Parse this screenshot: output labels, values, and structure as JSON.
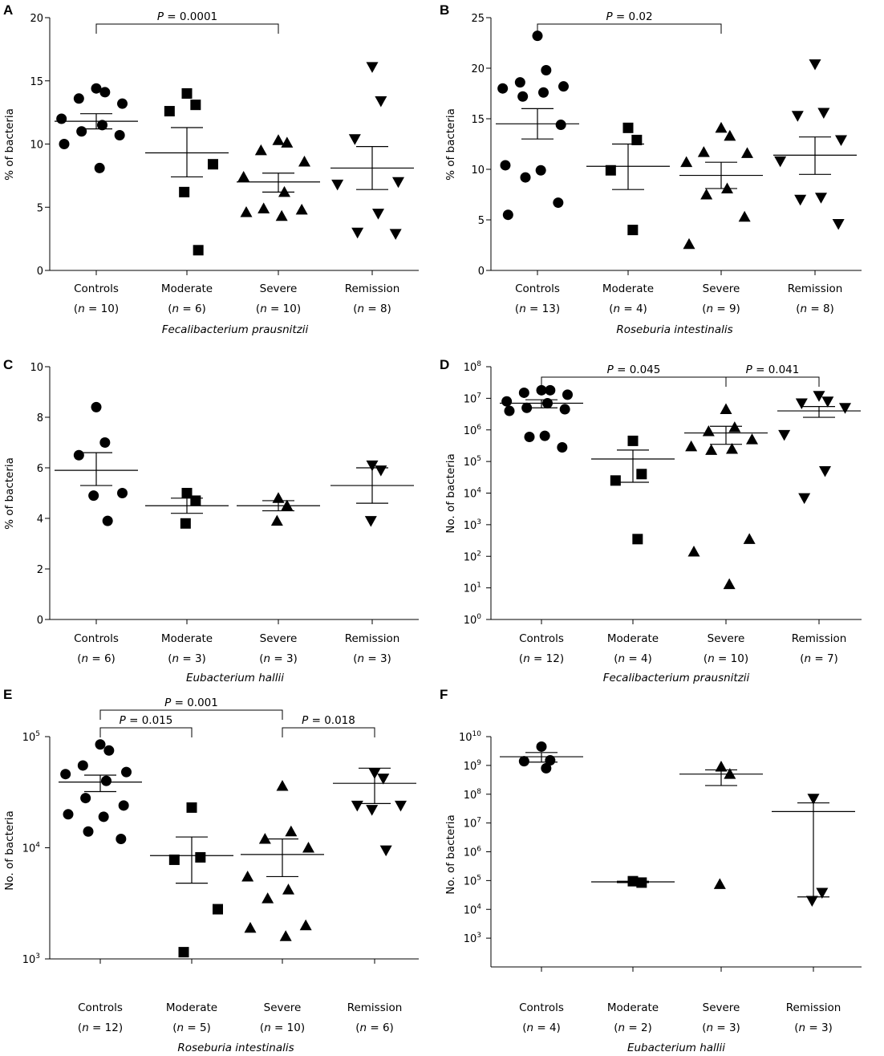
{
  "chart_data": [
    {
      "panel": "A",
      "type": "scatter",
      "ylabel": "% of bacteria",
      "yscale": "linear",
      "ylim": [
        0,
        20
      ],
      "yticks": [
        0,
        5,
        10,
        15,
        20
      ],
      "ytick_labels": [
        "0",
        "5",
        "10",
        "15",
        "20"
      ],
      "species": "Fecalibacterium prausnitzii",
      "groups": [
        {
          "name": "Controls",
          "n": "(n = 10)",
          "marker": "circle",
          "values": [
            14.4,
            14.1,
            13.6,
            13.2,
            12.0,
            11.5,
            11.0,
            10.7,
            10.0,
            8.1
          ],
          "mean": 11.8,
          "sem_hi": 12.4,
          "sem_lo": 11.2
        },
        {
          "name": "Moderate",
          "n": "(n = 6)",
          "marker": "square",
          "values": [
            14.0,
            13.1,
            12.6,
            8.4,
            6.2,
            1.6
          ],
          "mean": 9.3,
          "sem_hi": 11.3,
          "sem_lo": 7.4
        },
        {
          "name": "Severe",
          "n": "(n = 10)",
          "marker": "triangle-up",
          "values": [
            10.3,
            10.1,
            9.5,
            8.6,
            7.4,
            6.2,
            4.9,
            4.8,
            4.6,
            4.3
          ],
          "mean": 7.0,
          "sem_hi": 7.7,
          "sem_lo": 6.2
        },
        {
          "name": "Remission",
          "n": "(n = 8)",
          "marker": "triangle-down",
          "values": [
            16.1,
            13.4,
            10.4,
            7.0,
            6.8,
            4.5,
            3.0,
            2.9
          ],
          "mean": 8.1,
          "sem_hi": 9.8,
          "sem_lo": 6.4
        }
      ],
      "comparisons": [
        {
          "from": 0,
          "to": 2,
          "label": "P = 0.0001"
        }
      ]
    },
    {
      "panel": "B",
      "type": "scatter",
      "ylabel": "% of bacteria",
      "yscale": "linear",
      "ylim": [
        0,
        25
      ],
      "yticks": [
        0,
        5,
        10,
        15,
        20,
        25
      ],
      "ytick_labels": [
        "0",
        "5",
        "10",
        "15",
        "20",
        "25"
      ],
      "species": "Roseburia intestinalis",
      "groups": [
        {
          "name": "Controls",
          "n": "(n = 13)",
          "marker": "circle",
          "values": [
            23.2,
            19.8,
            18.6,
            18.2,
            18.0,
            17.6,
            17.2,
            14.4,
            10.4,
            9.9,
            9.2,
            6.7,
            5.5
          ],
          "mean": 14.5,
          "sem_hi": 16.0,
          "sem_lo": 13.0
        },
        {
          "name": "Moderate",
          "n": "(n = 4)",
          "marker": "square",
          "values": [
            14.1,
            12.9,
            9.9,
            4.0
          ],
          "mean": 10.3,
          "sem_hi": 12.5,
          "sem_lo": 8.0
        },
        {
          "name": "Severe",
          "n": "(n = 9)",
          "marker": "triangle-up",
          "values": [
            14.1,
            13.3,
            11.7,
            11.6,
            10.7,
            8.1,
            7.5,
            5.3,
            2.6
          ],
          "mean": 9.4,
          "sem_hi": 10.7,
          "sem_lo": 8.1
        },
        {
          "name": "Remission",
          "n": "(n = 8)",
          "marker": "triangle-down",
          "values": [
            20.4,
            15.6,
            15.3,
            12.9,
            10.8,
            7.2,
            7.0,
            4.6
          ],
          "mean": 11.4,
          "sem_hi": 13.2,
          "sem_lo": 9.5
        }
      ],
      "comparisons": [
        {
          "from": 0,
          "to": 2,
          "label": "P = 0.02"
        }
      ]
    },
    {
      "panel": "C",
      "type": "scatter",
      "ylabel": "% of bacteria",
      "yscale": "linear",
      "ylim": [
        0,
        10
      ],
      "yticks": [
        0,
        2,
        4,
        6,
        8,
        10
      ],
      "ytick_labels": [
        "0",
        "2",
        "4",
        "6",
        "8",
        "10"
      ],
      "species": "Eubacterium hallii",
      "groups": [
        {
          "name": "Controls",
          "n": "(n = 6)",
          "marker": "circle",
          "values": [
            8.4,
            7.0,
            6.5,
            5.0,
            4.9,
            3.9
          ],
          "mean": 5.9,
          "sem_hi": 6.6,
          "sem_lo": 5.3
        },
        {
          "name": "Moderate",
          "n": "(n = 3)",
          "marker": "square",
          "values": [
            5.0,
            4.7,
            3.8
          ],
          "mean": 4.5,
          "sem_hi": 4.8,
          "sem_lo": 4.2
        },
        {
          "name": "Severe",
          "n": "(n = 3)",
          "marker": "triangle-up",
          "values": [
            4.8,
            4.5,
            3.9
          ],
          "mean": 4.5,
          "sem_hi": 4.7,
          "sem_lo": 4.3
        },
        {
          "name": "Remission",
          "n": "(n = 3)",
          "marker": "triangle-down",
          "values": [
            6.1,
            5.9,
            3.9
          ],
          "mean": 5.3,
          "sem_hi": 6.0,
          "sem_lo": 4.6
        }
      ],
      "comparisons": []
    },
    {
      "panel": "D",
      "type": "scatter",
      "ylabel": "No. of bacteria",
      "yscale": "log",
      "ylim": [
        1,
        100000000
      ],
      "yticks": [
        1,
        10,
        100,
        1000,
        10000,
        100000,
        1000000,
        10000000,
        100000000
      ],
      "ytick_labels": [
        [
          "10",
          "0"
        ],
        [
          "10",
          "1"
        ],
        [
          "10",
          "2"
        ],
        [
          "10",
          "3"
        ],
        [
          "10",
          "4"
        ],
        [
          "10",
          "5"
        ],
        [
          "10",
          "6"
        ],
        [
          "10",
          "7"
        ],
        [
          "10",
          "8"
        ]
      ],
      "species": "Fecalibacterium prausnitzii",
      "groups": [
        {
          "name": "Controls",
          "n": "(n = 12)",
          "marker": "circle",
          "values": [
            18000000,
            18000000,
            15000000,
            13000000,
            8000000,
            7000000,
            5000000,
            4500000,
            4000000,
            650000,
            600000,
            280000
          ],
          "mean": 7000000,
          "sem_hi": 9000000,
          "sem_lo": 5000000
        },
        {
          "name": "Moderate",
          "n": "(n = 4)",
          "marker": "square",
          "values": [
            450000,
            40000,
            25000,
            350
          ],
          "mean": 120000,
          "sem_hi": 230000,
          "sem_lo": 22000
        },
        {
          "name": "Severe",
          "n": "(n = 10)",
          "marker": "triangle-up",
          "values": [
            4500000,
            1200000,
            900000,
            500000,
            300000,
            250000,
            230000,
            350,
            140,
            13
          ],
          "mean": 800000,
          "sem_hi": 1300000,
          "sem_lo": 350000
        },
        {
          "name": "Remission",
          "n": "(n = 7)",
          "marker": "triangle-down",
          "values": [
            12000000,
            8000000,
            7000000,
            5000000,
            700000,
            50000,
            7000
          ],
          "mean": 4000000,
          "sem_hi": 5500000,
          "sem_lo": 2500000
        }
      ],
      "comparisons": [
        {
          "from": 0,
          "to": 2,
          "label": "P = 0.045"
        },
        {
          "from": 2,
          "to": 3,
          "label": "P = 0.041"
        }
      ]
    },
    {
      "panel": "E",
      "type": "scatter",
      "ylabel": "No. of bacteria",
      "yscale": "log",
      "ylim": [
        1000,
        100000
      ],
      "yticks": [
        1000,
        10000,
        100000
      ],
      "ytick_labels": [
        [
          "10",
          "3"
        ],
        [
          "10",
          "4"
        ],
        [
          "10",
          "5"
        ]
      ],
      "species": "Roseburia intestinalis",
      "groups": [
        {
          "name": "Controls",
          "n": "(n = 12)",
          "marker": "circle",
          "values": [
            85000,
            75000,
            55000,
            48000,
            46000,
            40000,
            28000,
            24000,
            20000,
            19000,
            14000,
            12000
          ],
          "mean": 39000,
          "sem_hi": 45000,
          "sem_lo": 32000
        },
        {
          "name": "Moderate",
          "n": "(n = 5)",
          "marker": "square",
          "values": [
            23000,
            8200,
            7800,
            2800,
            1150
          ],
          "mean": 8500,
          "sem_hi": 12500,
          "sem_lo": 4800
        },
        {
          "name": "Severe",
          "n": "(n = 10)",
          "marker": "triangle-up",
          "values": [
            36000,
            14000,
            12000,
            10000,
            5500,
            4200,
            3500,
            2000,
            1900,
            1600
          ],
          "mean": 8700,
          "sem_hi": 12000,
          "sem_lo": 5500
        },
        {
          "name": "Remission",
          "n": "(n = 6)",
          "marker": "triangle-down",
          "values": [
            47000,
            42000,
            24000,
            24000,
            22000,
            9500
          ],
          "mean": 38000,
          "sem_hi": 52000,
          "sem_lo": 25000
        }
      ],
      "comparisons": [
        {
          "from": 0,
          "to": 2,
          "label": "P = 0.001"
        },
        {
          "from": 0,
          "to": 1,
          "label": "P = 0.015"
        },
        {
          "from": 2,
          "to": 3,
          "label": "P = 0.018"
        }
      ]
    },
    {
      "panel": "F",
      "type": "scatter",
      "ylabel": "No. of bacteria",
      "yscale": "log",
      "ylim": [
        100,
        10000000000
      ],
      "yticks": [
        1000,
        10000,
        100000,
        1000000,
        10000000,
        100000000,
        1000000000,
        10000000000
      ],
      "ytick_labels": [
        [
          "10",
          "3"
        ],
        [
          "10",
          "4"
        ],
        [
          "10",
          "5"
        ],
        [
          "10",
          "6"
        ],
        [
          "10",
          "7"
        ],
        [
          "10",
          "8"
        ],
        [
          "10",
          "9"
        ],
        [
          "10",
          "10"
        ]
      ],
      "species": "Eubacterium hallii",
      "groups": [
        {
          "name": "Controls",
          "n": "(n = 4)",
          "marker": "circle",
          "values": [
            4500000000,
            1500000000,
            1400000000,
            800000000
          ],
          "mean": 2000000000,
          "sem_hi": 2800000000,
          "sem_lo": 1300000000
        },
        {
          "name": "Moderate",
          "n": "(n = 2)",
          "marker": "square",
          "values": [
            95000,
            85000
          ],
          "mean": 90000,
          "sem_hi": 95000,
          "sem_lo": 85000
        },
        {
          "name": "Severe",
          "n": "(n = 3)",
          "marker": "triangle-up",
          "values": [
            900000000,
            500000000,
            75000
          ],
          "mean": 500000000,
          "sem_hi": 700000000,
          "sem_lo": 200000000
        },
        {
          "name": "Remission",
          "n": "(n = 3)",
          "marker": "triangle-down",
          "values": [
            70000000,
            38000,
            20000
          ],
          "mean": 25000000,
          "sem_hi": 50000000,
          "sem_lo": 27000
        },
        {
          "name": "",
          "n": "",
          "marker": "none",
          "values": [],
          "mean": null
        }
      ],
      "comparisons": []
    }
  ]
}
